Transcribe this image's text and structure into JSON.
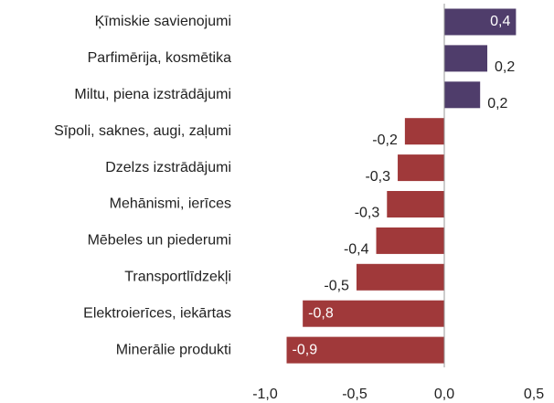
{
  "chart_data": {
    "type": "bar",
    "orientation": "horizontal",
    "categories": [
      "Ķīmiskie savienojumi",
      "Parfimērija, kosmētika",
      "Miltu, piena izstrādājumi",
      "Sīpoli, saknes, augi, zaļumi",
      "Dzelzs izstrādājumi",
      "Mehānismi, ierīces",
      "Mēbeles un piederumi",
      "Transportlīdzekļi",
      "Elektroierīces, iekārtas",
      "Minerālie produkti"
    ],
    "values": [
      0.4,
      0.24,
      0.2,
      -0.22,
      -0.26,
      -0.32,
      -0.38,
      -0.49,
      -0.79,
      -0.88
    ],
    "value_labels": [
      "0,4",
      "0,2",
      "0,2",
      "-0,2",
      "-0,3",
      "-0,3",
      "-0,4",
      "-0,5",
      "-0,8",
      "-0,9"
    ],
    "positive_color": "#4f3d6b",
    "negative_color": "#a0393a",
    "xlim": [
      -1.0,
      0.5
    ],
    "xticks": [
      {
        "value": -1.0,
        "label": "-1,0"
      },
      {
        "value": -0.5,
        "label": "-0,5"
      },
      {
        "value": 0,
        "label": "0,0"
      },
      {
        "value": 0.5,
        "label": "0,5"
      }
    ],
    "grid": false
  }
}
